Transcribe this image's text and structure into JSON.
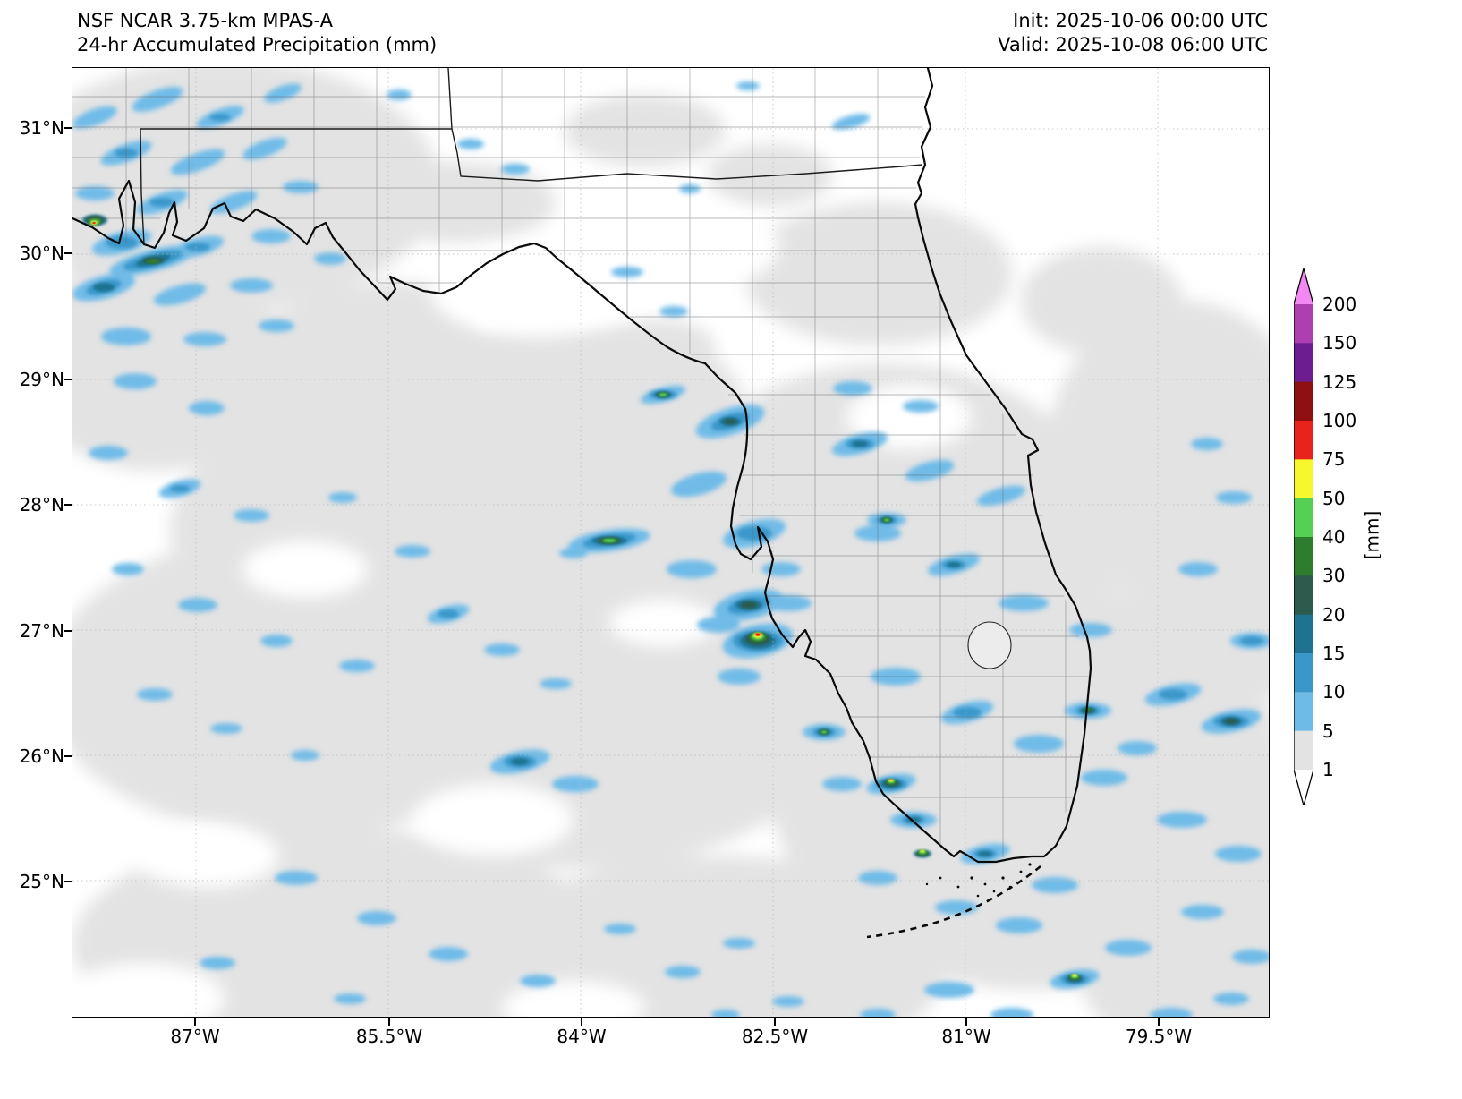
{
  "header": {
    "title_line1": "NSF NCAR 3.75-km MPAS-A",
    "title_line2": "24-hr Accumulated Precipitation (mm)",
    "init_label": "Init: 2025-10-06 00:00 UTC",
    "valid_label": "Valid: 2025-10-08 06:00 UTC"
  },
  "axes": {
    "lat_ticks": [
      "31°N",
      "30°N",
      "29°N",
      "28°N",
      "27°N",
      "26°N",
      "25°N"
    ],
    "lon_ticks": [
      "87°W",
      "85.5°W",
      "84°W",
      "82.5°W",
      "81°W",
      "79.5°W"
    ]
  },
  "colorbar": {
    "unit": "[mm]",
    "levels": [
      "200",
      "150",
      "125",
      "100",
      "75",
      "50",
      "40",
      "30",
      "20",
      "15",
      "10",
      "5",
      "1"
    ],
    "segment_colors_top_to_bottom": [
      "#ad3fb0",
      "#6d1d8f",
      "#8f1010",
      "#e8231c",
      "#f7f72e",
      "#55d055",
      "#2e7d2e",
      "#2c5a4c",
      "#1f7291",
      "#3b97c9",
      "#6fbbe8",
      "#e3e3e3"
    ],
    "over_arrow_color": "#f387f3",
    "under_arrow_color": "#ffffff"
  },
  "map_palette": {
    "trace": "#e3e3e3",
    "light": "#6fbbe8",
    "moderate": "#3b97c9",
    "heavy": "#1f7291",
    "very_heavy": "#2c5a4c",
    "intense": "#2e7d2e",
    "severe": "#55d055",
    "extreme": "#f7f72e",
    "max": "#e8231c",
    "coastline": "#0a0a0a"
  }
}
